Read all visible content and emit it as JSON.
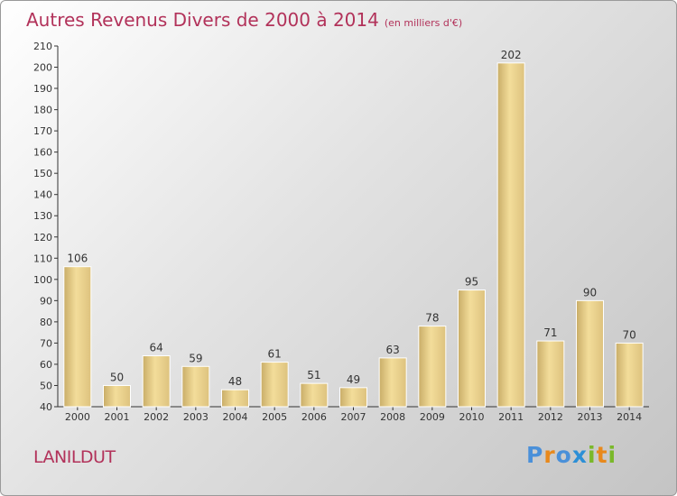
{
  "chart_data": {
    "type": "bar",
    "title": "Autres Revenus Divers de 2000 à 2014",
    "subtitle": "(en milliers d'€)",
    "categories": [
      "2000",
      "2001",
      "2002",
      "2003",
      "2004",
      "2005",
      "2006",
      "2007",
      "2008",
      "2009",
      "2010",
      "2011",
      "2012",
      "2013",
      "2014"
    ],
    "values": [
      106,
      50,
      64,
      59,
      48,
      61,
      51,
      49,
      63,
      78,
      95,
      202,
      71,
      90,
      70
    ],
    "ylim": [
      40,
      210
    ],
    "yticks": [
      40,
      50,
      60,
      70,
      80,
      90,
      100,
      110,
      120,
      130,
      140,
      150,
      160,
      170,
      180,
      190,
      200,
      210
    ],
    "xlabel": "",
    "ylabel": "",
    "grid": false,
    "colors": {
      "bar_light": "#f3dd9a",
      "bar_dark": "#c9ad68",
      "text_accent": "#b2325a"
    }
  },
  "footer": {
    "place": "LANILDUT",
    "logo": {
      "letters": [
        "P",
        "r",
        "o",
        "x",
        "i",
        "t",
        "i"
      ],
      "colors": [
        "#4a90d9",
        "#e8891c",
        "#4a90d9",
        "#2c8fd6",
        "#7ab82a",
        "#e8891c",
        "#7ab82a"
      ]
    }
  }
}
